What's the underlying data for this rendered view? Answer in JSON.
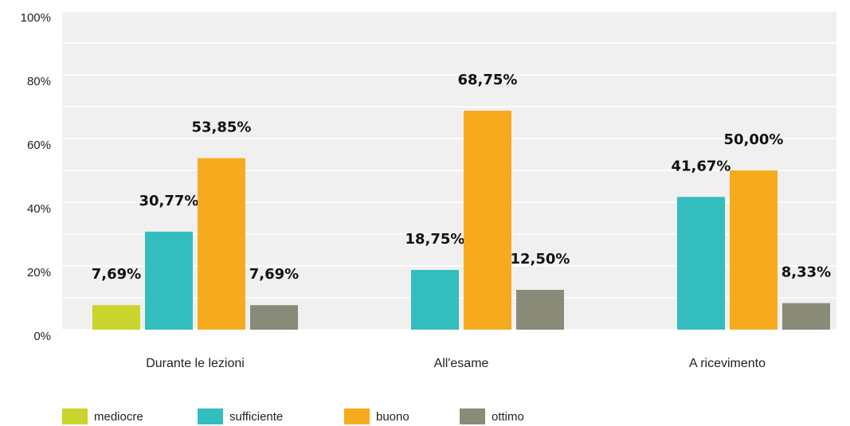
{
  "chart_data": {
    "type": "bar",
    "categories": [
      "Durante le lezioni",
      "All'esame",
      "A ricevimento"
    ],
    "series": [
      {
        "name": "mediocre",
        "color": "#c9d42c",
        "values": [
          7.69,
          null,
          null
        ],
        "value_labels": [
          "7,69%",
          null,
          null
        ]
      },
      {
        "name": "sufficiente",
        "color": "#33bdbf",
        "values": [
          30.77,
          18.75,
          41.67
        ],
        "value_labels": [
          "30,77%",
          "18,75%",
          "41,67%"
        ]
      },
      {
        "name": "buono",
        "color": "#f6ab1f",
        "values": [
          53.85,
          68.75,
          50.0
        ],
        "value_labels": [
          "53,85%",
          "68,75%",
          "50,00%"
        ]
      },
      {
        "name": "ottimo",
        "color": "#898a78",
        "values": [
          7.69,
          12.5,
          8.33
        ],
        "value_labels": [
          "7,69%",
          "12,50%",
          "8,33%"
        ]
      }
    ],
    "ylim": [
      0,
      100
    ],
    "yticks": [
      {
        "value": 0,
        "label": "0%"
      },
      {
        "value": 20,
        "label": "20%"
      },
      {
        "value": 40,
        "label": "40%"
      },
      {
        "value": 60,
        "label": "60%"
      },
      {
        "value": 80,
        "label": "80%"
      },
      {
        "value": 100,
        "label": "100%"
      }
    ],
    "grid": true,
    "legend": "bottom-left"
  }
}
